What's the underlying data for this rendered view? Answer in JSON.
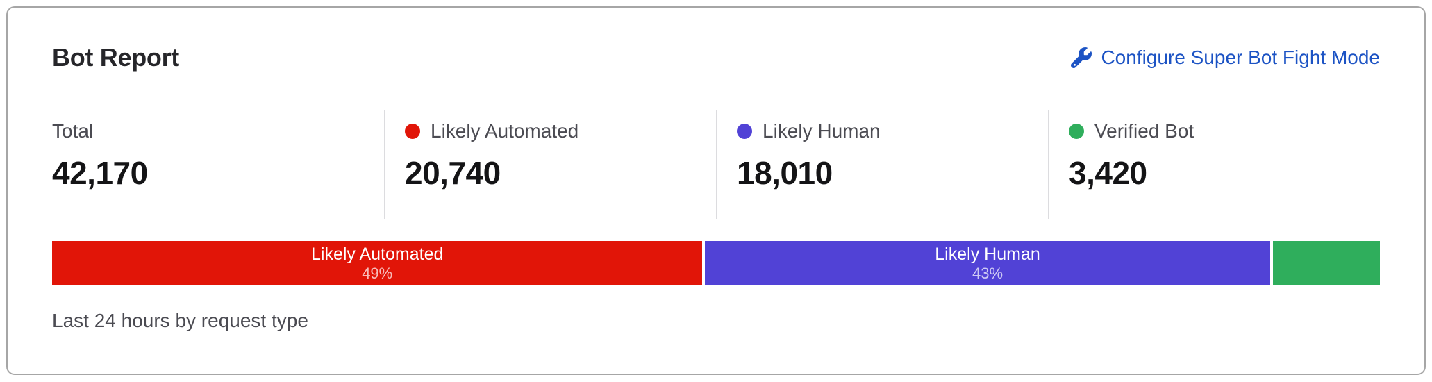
{
  "card": {
    "title": "Bot Report",
    "configure_link": {
      "label": "Configure Super Bot Fight Mode",
      "icon": "wrench-icon",
      "color": "#1c53c4"
    },
    "stats": [
      {
        "label": "Total",
        "value": "42,170",
        "dot_color": null
      },
      {
        "label": "Likely Automated",
        "value": "20,740",
        "dot_color": "#e11508"
      },
      {
        "label": "Likely Human",
        "value": "18,010",
        "dot_color": "#5142d6"
      },
      {
        "label": "Verified Bot",
        "value": "3,420",
        "dot_color": "#2fae5c"
      }
    ],
    "footnote": "Last 24 hours by request type"
  },
  "chart_data": {
    "type": "bar",
    "variant": "horizontal-stacked",
    "title": "Bot Report",
    "caption": "Last 24 hours by request type",
    "unit": "requests",
    "total": 42170,
    "segments": [
      {
        "name": "Likely Automated",
        "value": 20740,
        "percent": 49,
        "color": "#e11508",
        "label_visible": true
      },
      {
        "name": "Likely Human",
        "value": 18010,
        "percent": 43,
        "color": "#5142d6",
        "label_visible": true
      },
      {
        "name": "Verified Bot",
        "value": 3420,
        "percent": 8,
        "color": "#2fae5c",
        "label_visible": false
      }
    ],
    "legend_position": "top",
    "grid": false
  }
}
